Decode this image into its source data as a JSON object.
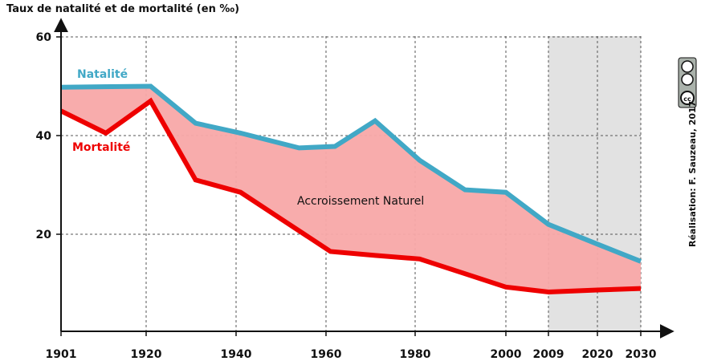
{
  "chart_data": {
    "type": "area",
    "title": "",
    "ylabel": "Taux de natalité et de mortalité (en ‰)",
    "xlabel": "",
    "x_tick_labels": [
      "1901",
      "1920",
      "1940",
      "1960",
      "1980",
      "2000",
      "2009",
      "2020",
      "2030"
    ],
    "y_tick_labels": [
      "20",
      "40",
      "60"
    ],
    "ylim": [
      0,
      60
    ],
    "xlim": [
      1901,
      2030
    ],
    "grid": true,
    "projection_shaded_from": 2009,
    "series": [
      {
        "name": "Natalité",
        "color": "#41a8c6",
        "points": [
          [
            1901,
            49.8
          ],
          [
            1921,
            50
          ],
          [
            1931,
            42.5
          ],
          [
            1941,
            40.5
          ],
          [
            1954,
            37.5
          ],
          [
            1962,
            37.8
          ],
          [
            1971,
            43
          ],
          [
            1981,
            35
          ],
          [
            1991,
            29
          ],
          [
            2000,
            28.5
          ],
          [
            2009,
            22
          ],
          [
            2020,
            18
          ],
          [
            2030,
            14.5
          ]
        ]
      },
      {
        "name": "Mortalité",
        "color": "#ee0000",
        "points": [
          [
            1901,
            45
          ],
          [
            1911,
            40.5
          ],
          [
            1921,
            47
          ],
          [
            1931,
            31
          ],
          [
            1941,
            28.5
          ],
          [
            1951,
            22.5
          ],
          [
            1961,
            16.5
          ],
          [
            1971,
            15.7
          ],
          [
            1981,
            15
          ],
          [
            1991,
            12
          ],
          [
            2000,
            9.3
          ],
          [
            2009,
            8.3
          ],
          [
            2020,
            8.7
          ],
          [
            2030,
            9
          ]
        ]
      }
    ],
    "area_label": "Accroissement Naturel",
    "area_color": "#f8a8a8"
  },
  "credit": "Réalisation: F. Sauzeau, 2017",
  "license_badge": "cc-by-nc-sa"
}
